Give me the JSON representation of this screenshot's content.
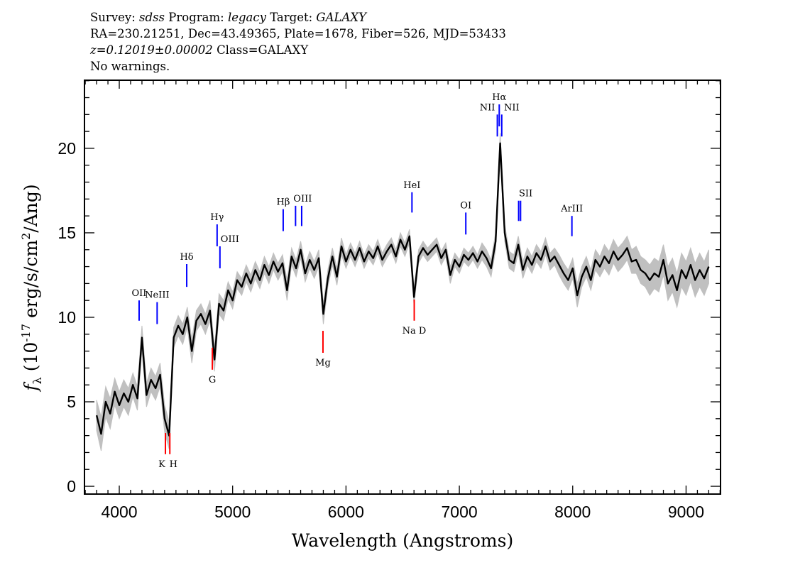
{
  "header": {
    "survey_label": "Survey:",
    "survey": "sdss",
    "program_label": "Program:",
    "program": "legacy",
    "target_label": "Target:",
    "target": "GALAXY",
    "line2": "RA=230.21251, Dec=43.49365, Plate=1678, Fiber=526, MJD=53433",
    "redshift": "z=0.12019±0.00002",
    "class": "Class=GALAXY",
    "warnings": "No warnings."
  },
  "chart_data": {
    "type": "line",
    "xlabel": "Wavelength (Angstroms)",
    "ylabel": "f_λ (10^-17 erg/s/cm^2/Ang)",
    "xlim": [
      3693,
      9304
    ],
    "ylim": [
      -0.46,
      24.03
    ],
    "x_ticks": [
      4000,
      5000,
      6000,
      7000,
      8000,
      9000
    ],
    "x_tick_labels": [
      "4000",
      "5000",
      "6000",
      "7000",
      "8000",
      "9000"
    ],
    "x_minor_step": 100,
    "y_ticks": [
      0,
      5,
      10,
      15,
      20
    ],
    "y_tick_labels": [
      "0",
      "5",
      "10",
      "15",
      "20"
    ],
    "y_minor_step": 1,
    "grid": false,
    "colors": {
      "flux": "#000000",
      "error": "#c0c0c0",
      "emission": "#0000ff",
      "absorption": "#ff0000"
    },
    "spectrum": [
      [
        3800,
        4.2,
        0.9
      ],
      [
        3840,
        3.1,
        1.0
      ],
      [
        3880,
        5.0,
        0.9
      ],
      [
        3920,
        4.3,
        0.9
      ],
      [
        3960,
        5.6,
        0.8
      ],
      [
        4000,
        4.8,
        0.8
      ],
      [
        4040,
        5.5,
        0.8
      ],
      [
        4080,
        5.0,
        0.8
      ],
      [
        4120,
        6.0,
        0.7
      ],
      [
        4160,
        5.2,
        0.7
      ],
      [
        4200,
        8.8,
        0.7
      ],
      [
        4240,
        5.4,
        0.7
      ],
      [
        4280,
        6.3,
        0.7
      ],
      [
        4320,
        5.8,
        0.7
      ],
      [
        4360,
        6.6,
        0.7
      ],
      [
        4400,
        4.0,
        0.8
      ],
      [
        4440,
        3.0,
        0.8
      ],
      [
        4480,
        8.8,
        0.6
      ],
      [
        4520,
        9.5,
        0.6
      ],
      [
        4560,
        9.0,
        0.6
      ],
      [
        4600,
        10.0,
        0.6
      ],
      [
        4640,
        8.0,
        0.7
      ],
      [
        4680,
        9.8,
        0.6
      ],
      [
        4720,
        10.2,
        0.6
      ],
      [
        4760,
        9.6,
        0.6
      ],
      [
        4800,
        10.4,
        0.6
      ],
      [
        4840,
        7.5,
        0.7
      ],
      [
        4880,
        10.8,
        0.6
      ],
      [
        4920,
        10.4,
        0.6
      ],
      [
        4960,
        11.6,
        0.5
      ],
      [
        5000,
        11.0,
        0.5
      ],
      [
        5040,
        12.2,
        0.5
      ],
      [
        5080,
        11.8,
        0.5
      ],
      [
        5120,
        12.6,
        0.5
      ],
      [
        5160,
        12.0,
        0.5
      ],
      [
        5200,
        12.8,
        0.5
      ],
      [
        5240,
        12.2,
        0.5
      ],
      [
        5280,
        13.1,
        0.5
      ],
      [
        5320,
        12.5,
        0.5
      ],
      [
        5360,
        13.3,
        0.5
      ],
      [
        5400,
        12.7,
        0.5
      ],
      [
        5440,
        13.2,
        0.5
      ],
      [
        5480,
        11.6,
        0.6
      ],
      [
        5520,
        13.6,
        0.5
      ],
      [
        5560,
        12.9,
        0.5
      ],
      [
        5600,
        14.0,
        0.5
      ],
      [
        5640,
        12.6,
        0.5
      ],
      [
        5680,
        13.4,
        0.5
      ],
      [
        5720,
        12.8,
        0.5
      ],
      [
        5760,
        13.5,
        0.5
      ],
      [
        5800,
        10.2,
        0.6
      ],
      [
        5840,
        12.3,
        0.5
      ],
      [
        5880,
        13.6,
        0.5
      ],
      [
        5920,
        12.4,
        0.5
      ],
      [
        5960,
        14.2,
        0.5
      ],
      [
        6000,
        13.3,
        0.4
      ],
      [
        6040,
        14.0,
        0.4
      ],
      [
        6080,
        13.4,
        0.4
      ],
      [
        6120,
        14.1,
        0.4
      ],
      [
        6160,
        13.3,
        0.4
      ],
      [
        6200,
        13.9,
        0.4
      ],
      [
        6240,
        13.5,
        0.4
      ],
      [
        6280,
        14.2,
        0.4
      ],
      [
        6320,
        13.4,
        0.4
      ],
      [
        6360,
        13.9,
        0.4
      ],
      [
        6400,
        14.3,
        0.4
      ],
      [
        6440,
        13.6,
        0.4
      ],
      [
        6480,
        14.6,
        0.4
      ],
      [
        6520,
        14.0,
        0.4
      ],
      [
        6560,
        14.8,
        0.4
      ],
      [
        6600,
        11.2,
        0.5
      ],
      [
        6640,
        13.6,
        0.4
      ],
      [
        6680,
        14.1,
        0.4
      ],
      [
        6720,
        13.7,
        0.4
      ],
      [
        6760,
        14.0,
        0.4
      ],
      [
        6800,
        14.3,
        0.4
      ],
      [
        6840,
        13.5,
        0.4
      ],
      [
        6880,
        14.0,
        0.4
      ],
      [
        6920,
        12.5,
        0.5
      ],
      [
        6960,
        13.4,
        0.4
      ],
      [
        7000,
        13.0,
        0.4
      ],
      [
        7040,
        13.7,
        0.4
      ],
      [
        7080,
        13.4,
        0.4
      ],
      [
        7120,
        13.8,
        0.4
      ],
      [
        7160,
        13.3,
        0.4
      ],
      [
        7200,
        13.9,
        0.5
      ],
      [
        7240,
        13.5,
        0.5
      ],
      [
        7280,
        12.9,
        0.5
      ],
      [
        7320,
        14.5,
        0.5
      ],
      [
        7360,
        20.3,
        0.6
      ],
      [
        7400,
        15.0,
        0.5
      ],
      [
        7440,
        13.4,
        0.5
      ],
      [
        7480,
        13.2,
        0.5
      ],
      [
        7520,
        14.3,
        0.5
      ],
      [
        7560,
        12.8,
        0.5
      ],
      [
        7600,
        13.6,
        0.5
      ],
      [
        7640,
        13.1,
        0.5
      ],
      [
        7680,
        13.8,
        0.5
      ],
      [
        7720,
        13.4,
        0.5
      ],
      [
        7760,
        14.2,
        0.5
      ],
      [
        7800,
        13.3,
        0.5
      ],
      [
        7840,
        13.6,
        0.5
      ],
      [
        7880,
        13.1,
        0.6
      ],
      [
        7920,
        12.6,
        0.6
      ],
      [
        7960,
        12.2,
        0.6
      ],
      [
        8000,
        12.9,
        0.6
      ],
      [
        8040,
        11.3,
        0.7
      ],
      [
        8080,
        12.4,
        0.6
      ],
      [
        8120,
        13.0,
        0.6
      ],
      [
        8160,
        12.2,
        0.6
      ],
      [
        8200,
        13.4,
        0.6
      ],
      [
        8240,
        13.0,
        0.6
      ],
      [
        8280,
        13.6,
        0.7
      ],
      [
        8320,
        13.2,
        0.7
      ],
      [
        8360,
        13.9,
        0.7
      ],
      [
        8400,
        13.4,
        0.7
      ],
      [
        8440,
        13.7,
        0.7
      ],
      [
        8480,
        14.1,
        0.7
      ],
      [
        8520,
        13.3,
        0.7
      ],
      [
        8560,
        13.4,
        0.8
      ],
      [
        8600,
        12.8,
        0.8
      ],
      [
        8640,
        12.6,
        0.8
      ],
      [
        8680,
        12.2,
        0.9
      ],
      [
        8720,
        12.6,
        0.9
      ],
      [
        8760,
        12.4,
        0.9
      ],
      [
        8800,
        13.4,
        0.9
      ],
      [
        8840,
        12.0,
        1.0
      ],
      [
        8880,
        12.5,
        1.0
      ],
      [
        8920,
        11.6,
        1.0
      ],
      [
        8960,
        12.8,
        1.0
      ],
      [
        9000,
        12.3,
        1.0
      ],
      [
        9040,
        13.1,
        1.0
      ],
      [
        9080,
        12.2,
        1.0
      ],
      [
        9120,
        12.8,
        1.0
      ],
      [
        9160,
        12.3,
        1.0
      ],
      [
        9200,
        13.0,
        1.0
      ]
    ],
    "lines": [
      {
        "label": "OII",
        "wavelength": 4175,
        "kind": "emission",
        "range": [
          9.8,
          11.0
        ]
      },
      {
        "label": "NeIII",
        "wavelength": 4334,
        "kind": "emission",
        "range": [
          9.6,
          10.9
        ]
      },
      {
        "label": "Hδ",
        "wavelength": 4595,
        "kind": "emission",
        "range": [
          11.8,
          13.15
        ]
      },
      {
        "label": "Hγ",
        "wavelength": 4863,
        "kind": "emission",
        "range": [
          14.2,
          15.5
        ]
      },
      {
        "label": "OIII",
        "wavelength": 4888,
        "kind": "emission",
        "range": [
          12.9,
          14.2
        ]
      },
      {
        "label": "Hβ",
        "wavelength": 5446,
        "kind": "emission",
        "range": [
          15.1,
          16.4
        ]
      },
      {
        "label": "OIII",
        "wavelength": 5555,
        "kind": "emission",
        "range": [
          15.4,
          16.6
        ]
      },
      {
        "label": "",
        "wavelength": 5609,
        "kind": "emission",
        "range": [
          15.4,
          16.6
        ]
      },
      {
        "label": "HeI",
        "wavelength": 6582,
        "kind": "emission",
        "range": [
          16.2,
          17.4
        ]
      },
      {
        "label": "OI",
        "wavelength": 7057,
        "kind": "emission",
        "range": [
          14.9,
          16.2
        ]
      },
      {
        "label": "NII",
        "wavelength": 7335,
        "kind": "emission",
        "range": [
          20.7,
          22.0
        ]
      },
      {
        "label": "Hα",
        "wavelength": 7352,
        "kind": "emission",
        "range": [
          21.3,
          22.6
        ]
      },
      {
        "label": "NII",
        "wavelength": 7374,
        "kind": "emission",
        "range": [
          20.7,
          22.0
        ]
      },
      {
        "label": "SII",
        "wavelength": 7523,
        "kind": "emission",
        "range": [
          15.7,
          16.9
        ]
      },
      {
        "label": "",
        "wavelength": 7540,
        "kind": "emission",
        "range": [
          15.7,
          16.9
        ]
      },
      {
        "label": "ArIII",
        "wavelength": 7993,
        "kind": "emission",
        "range": [
          14.8,
          16.0
        ]
      },
      {
        "label": "K",
        "wavelength": 4407,
        "kind": "absorption",
        "range": [
          1.9,
          3.15
        ]
      },
      {
        "label": "H",
        "wavelength": 4446,
        "kind": "absorption",
        "range": [
          1.9,
          3.15
        ]
      },
      {
        "label": "G",
        "wavelength": 4821,
        "kind": "absorption",
        "range": [
          6.9,
          8.2
        ]
      },
      {
        "label": "Mg",
        "wavelength": 5797,
        "kind": "absorption",
        "range": [
          7.9,
          9.2
        ]
      },
      {
        "label": "Na D",
        "wavelength": 6602,
        "kind": "absorption",
        "range": [
          9.8,
          11.05
        ]
      }
    ]
  }
}
